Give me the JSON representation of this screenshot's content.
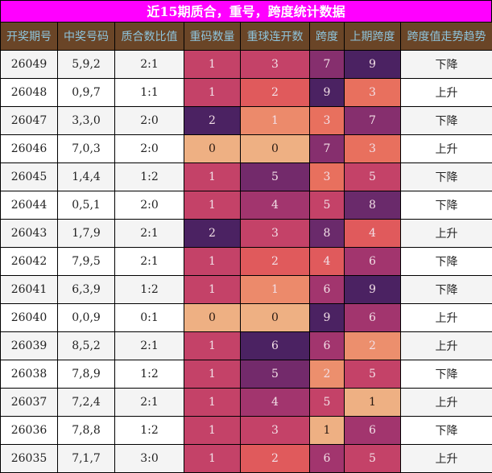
{
  "title": "近15期质合，重号，跨度统计数据",
  "colors": {
    "title_bg": "#ff00ff",
    "header_bg": "#6a4527",
    "header_text": "#8ec4dc",
    "row_odd": "#f4f4f4",
    "row_even": "#ffffff"
  },
  "columns": [
    "开奖期号",
    "中奖号码",
    "质合数比值",
    "重码数量",
    "重球连开数",
    "跨度",
    "上期跨度",
    "跨度值走势趋势"
  ],
  "rows": [
    {
      "issue": "26049",
      "numbers": "5,9,2",
      "ratio": "2:1",
      "repeat": "1",
      "streak": "3",
      "span": "7",
      "prev_span": "9",
      "trend": "下降"
    },
    {
      "issue": "26048",
      "numbers": "0,9,7",
      "ratio": "1:1",
      "repeat": "1",
      "streak": "2",
      "span": "9",
      "prev_span": "3",
      "trend": "上升"
    },
    {
      "issue": "26047",
      "numbers": "3,3,0",
      "ratio": "2:0",
      "repeat": "2",
      "streak": "1",
      "span": "3",
      "prev_span": "7",
      "trend": "下降"
    },
    {
      "issue": "26046",
      "numbers": "7,0,3",
      "ratio": "2:0",
      "repeat": "0",
      "streak": "0",
      "span": "7",
      "prev_span": "3",
      "trend": "上升"
    },
    {
      "issue": "26045",
      "numbers": "1,4,4",
      "ratio": "1:2",
      "repeat": "1",
      "streak": "5",
      "span": "3",
      "prev_span": "5",
      "trend": "下降"
    },
    {
      "issue": "26044",
      "numbers": "0,5,1",
      "ratio": "2:0",
      "repeat": "1",
      "streak": "4",
      "span": "5",
      "prev_span": "8",
      "trend": "下降"
    },
    {
      "issue": "26043",
      "numbers": "1,7,9",
      "ratio": "2:1",
      "repeat": "2",
      "streak": "3",
      "span": "8",
      "prev_span": "4",
      "trend": "上升"
    },
    {
      "issue": "26042",
      "numbers": "7,9,5",
      "ratio": "2:1",
      "repeat": "1",
      "streak": "2",
      "span": "4",
      "prev_span": "6",
      "trend": "下降"
    },
    {
      "issue": "26041",
      "numbers": "6,3,9",
      "ratio": "1:2",
      "repeat": "1",
      "streak": "1",
      "span": "6",
      "prev_span": "9",
      "trend": "下降"
    },
    {
      "issue": "26040",
      "numbers": "0,0,9",
      "ratio": "0:1",
      "repeat": "0",
      "streak": "0",
      "span": "9",
      "prev_span": "6",
      "trend": "上升"
    },
    {
      "issue": "26039",
      "numbers": "8,5,2",
      "ratio": "2:1",
      "repeat": "1",
      "streak": "6",
      "span": "6",
      "prev_span": "2",
      "trend": "上升"
    },
    {
      "issue": "26038",
      "numbers": "7,8,9",
      "ratio": "1:2",
      "repeat": "1",
      "streak": "5",
      "span": "2",
      "prev_span": "5",
      "trend": "下降"
    },
    {
      "issue": "26037",
      "numbers": "7,2,4",
      "ratio": "2:1",
      "repeat": "1",
      "streak": "4",
      "span": "5",
      "prev_span": "1",
      "trend": "上升"
    },
    {
      "issue": "26036",
      "numbers": "7,8,8",
      "ratio": "1:2",
      "repeat": "1",
      "streak": "3",
      "span": "1",
      "prev_span": "6",
      "trend": "下降"
    },
    {
      "issue": "26035",
      "numbers": "7,1,7",
      "ratio": "3:0",
      "repeat": "1",
      "streak": "2",
      "span": "6",
      "prev_span": "5",
      "trend": "上升"
    }
  ],
  "heat_scales": {
    "repeat": {
      "0": "#eeb083",
      "1": "#c44268",
      "2": "#4b2262"
    },
    "streak": {
      "0": "#eeb083",
      "1": "#ec8a6b",
      "2": "#e05a5c",
      "3": "#c44268",
      "4": "#a2356e",
      "5": "#732a6b",
      "6": "#4b2262"
    },
    "span": {
      "0": "#f2c79a",
      "1": "#eeb083",
      "2": "#ec8f6d",
      "3": "#e8705e",
      "4": "#e05a5c",
      "5": "#c44268",
      "6": "#a2356e",
      "7": "#862f6e",
      "8": "#6a2a6b",
      "9": "#4b2262"
    }
  }
}
